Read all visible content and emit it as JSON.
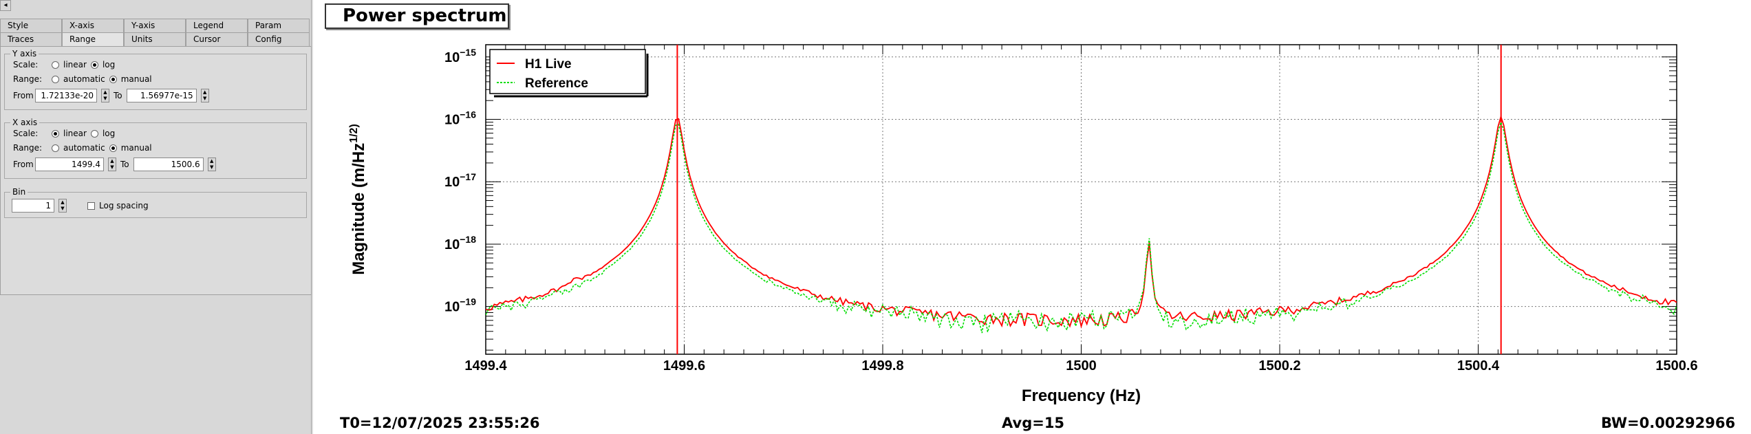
{
  "tabs": {
    "row1": [
      "Style",
      "X-axis",
      "Y-axis",
      "Legend",
      "Param"
    ],
    "row2": [
      "Traces",
      "Range",
      "Units",
      "Cursor",
      "Config"
    ],
    "active": "Range"
  },
  "yaxis": {
    "group_label": "Y axis",
    "scale_label": "Scale:",
    "linear_label": "linear",
    "log_label": "log",
    "scale": "log",
    "range_label": "Range:",
    "automatic_label": "automatic",
    "manual_label": "manual",
    "range": "manual",
    "from_label": "From",
    "from_value": "1.72133e-20",
    "to_label": "To",
    "to_value": "1.56977e-15"
  },
  "xaxis": {
    "group_label": "X axis",
    "scale_label": "Scale:",
    "linear_label": "linear",
    "log_label": "log",
    "scale": "linear",
    "range_label": "Range:",
    "automatic_label": "automatic",
    "manual_label": "manual",
    "range": "manual",
    "from_label": "From",
    "from_value": "1499.4",
    "to_label": "To",
    "to_value": "1500.6"
  },
  "bin": {
    "group_label": "Bin",
    "value": "1",
    "log_spacing_label": "Log spacing"
  },
  "plot": {
    "title": "Power spectrum",
    "t0": "T0=12/07/2025 23:55:26",
    "avg": "Avg=15",
    "bw": "BW=0.00292966"
  },
  "chart_data": {
    "type": "line",
    "xlabel": "Frequency (Hz)",
    "ylabel": "Magnitude (m/Hz^(1/2))",
    "xlim": [
      1499.4,
      1500.6
    ],
    "ylim": [
      1.72133e-20,
      1.56977e-15
    ],
    "yscale": "log",
    "x_ticks": [
      "1499.4",
      "1499.6",
      "1499.8",
      "1500",
      "1500.2",
      "1500.4",
      "1500.6"
    ],
    "y_ticks": [
      {
        "base": "10",
        "exp": "−15",
        "value": 1e-15
      },
      {
        "base": "10",
        "exp": "−16",
        "value": 1e-16
      },
      {
        "base": "10",
        "exp": "−17",
        "value": 1e-17
      },
      {
        "base": "10",
        "exp": "−18",
        "value": 1e-18
      },
      {
        "base": "10",
        "exp": "−19",
        "value": 1e-19
      }
    ],
    "grid": true,
    "legend": "top-left",
    "vertical_markers": [
      1499.593,
      1500.423
    ],
    "series": [
      {
        "name": "H1 Live",
        "color": "#ff0000",
        "style": "solid",
        "noise_floor": 3.5e-20,
        "peaks": [
          {
            "x": 1499.593,
            "y": 1.1e-16,
            "w": 0.0045
          },
          {
            "x": 1500.068,
            "y": 1.1e-18,
            "w": 0.0018
          },
          {
            "x": 1500.423,
            "y": 1.1e-16,
            "w": 0.0045
          },
          {
            "x": 1499.49,
            "y": 7.5e-20,
            "w": 0.002
          }
        ]
      },
      {
        "name": "Reference",
        "color": "#00dd00",
        "style": "dotted",
        "noise_floor": 3.7e-20,
        "peaks": [
          {
            "x": 1499.593,
            "y": 9e-17,
            "w": 0.0045
          },
          {
            "x": 1500.068,
            "y": 1.3e-18,
            "w": 0.0018
          },
          {
            "x": 1500.423,
            "y": 9e-17,
            "w": 0.0045
          }
        ]
      }
    ]
  }
}
